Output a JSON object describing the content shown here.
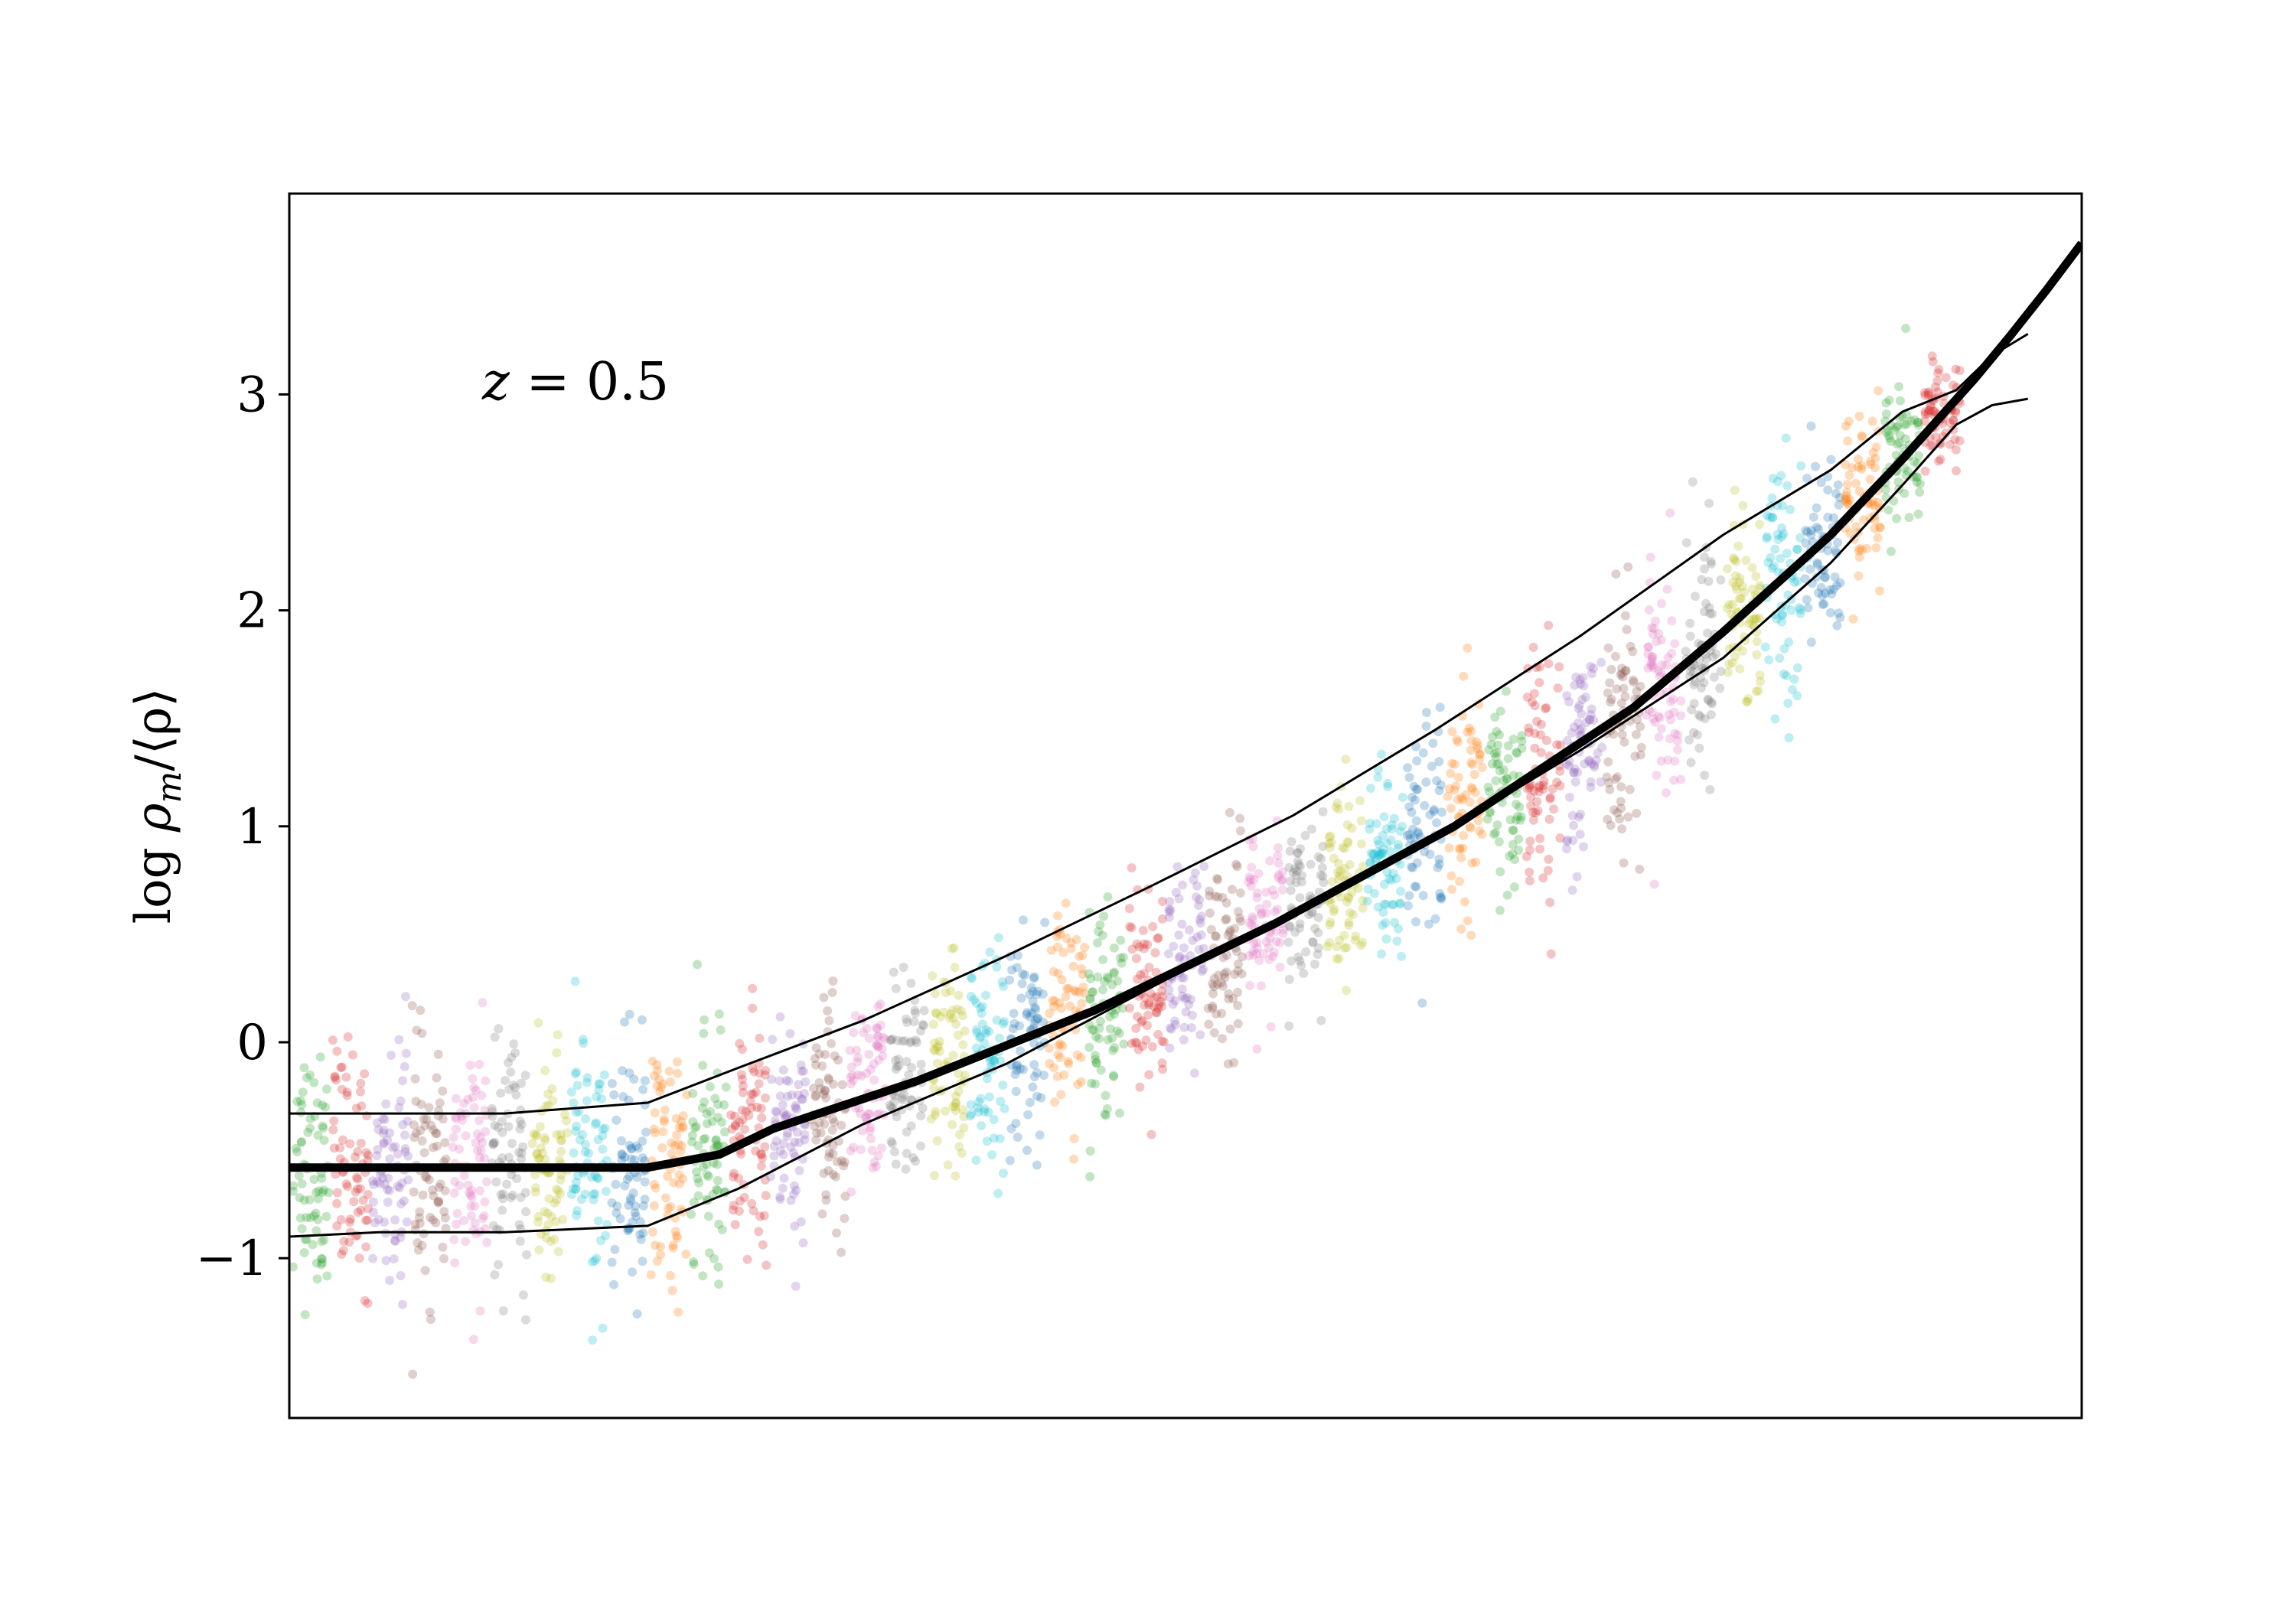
{
  "chart_data": {
    "type": "scatter",
    "title": "",
    "xlabel": "",
    "ylabel": "log ρ_m/⟨ρ⟩",
    "ylabel_parts": {
      "prefix": "log ",
      "rho": "ρ",
      "sub": "m",
      "rest": "/⟨ρ⟩"
    },
    "annotation": "z = 0.5",
    "annotation_parts": {
      "var": "z",
      "rest": " = 0.5"
    },
    "xlim": [
      0,
      1
    ],
    "ylim": [
      -1.74,
      3.93
    ],
    "yticks": [
      -1,
      0,
      1,
      2,
      3
    ],
    "ytick_labels": [
      "−1",
      "0",
      "1",
      "2",
      "3"
    ],
    "grid": false,
    "legend": "none",
    "palette": [
      "#2ca02c",
      "#d62728",
      "#9467bd",
      "#8c564b",
      "#e377c2",
      "#7f7f7f",
      "#bcbd22",
      "#17becf",
      "#1f77b4",
      "#ff7f0e"
    ],
    "median_curve": {
      "x": [
        0.0,
        0.1,
        0.2,
        0.24,
        0.27,
        0.35,
        0.45,
        0.55,
        0.65,
        0.75,
        0.8,
        0.86,
        0.9,
        0.94,
        0.96,
        0.98,
        1.0
      ],
      "y": [
        -0.58,
        -0.58,
        -0.58,
        -0.52,
        -0.4,
        -0.18,
        0.15,
        0.55,
        1.0,
        1.55,
        1.9,
        2.35,
        2.7,
        3.07,
        3.27,
        3.48,
        3.7
      ]
    },
    "upper_band": {
      "x": [
        0.0,
        0.05,
        0.12,
        0.2,
        0.25,
        0.32,
        0.4,
        0.48,
        0.56,
        0.64,
        0.72,
        0.8,
        0.86,
        0.9,
        0.93,
        0.95,
        0.97
      ],
      "y": [
        -0.33,
        -0.33,
        -0.33,
        -0.28,
        -0.12,
        0.1,
        0.4,
        0.72,
        1.05,
        1.45,
        1.88,
        2.35,
        2.65,
        2.92,
        3.02,
        3.18,
        3.28
      ]
    },
    "lower_band": {
      "x": [
        0.0,
        0.05,
        0.12,
        0.2,
        0.25,
        0.32,
        0.4,
        0.48,
        0.56,
        0.64,
        0.72,
        0.8,
        0.86,
        0.9,
        0.93,
        0.95,
        0.97
      ],
      "y": [
        -0.9,
        -0.88,
        -0.88,
        -0.85,
        -0.68,
        -0.38,
        -0.1,
        0.25,
        0.6,
        0.95,
        1.35,
        1.78,
        2.22,
        2.58,
        2.86,
        2.95,
        2.98
      ]
    },
    "scatter_columns": {
      "count": 42,
      "x_start": 0.012,
      "x_step": 0.0222,
      "points_per_column": 70
    }
  }
}
